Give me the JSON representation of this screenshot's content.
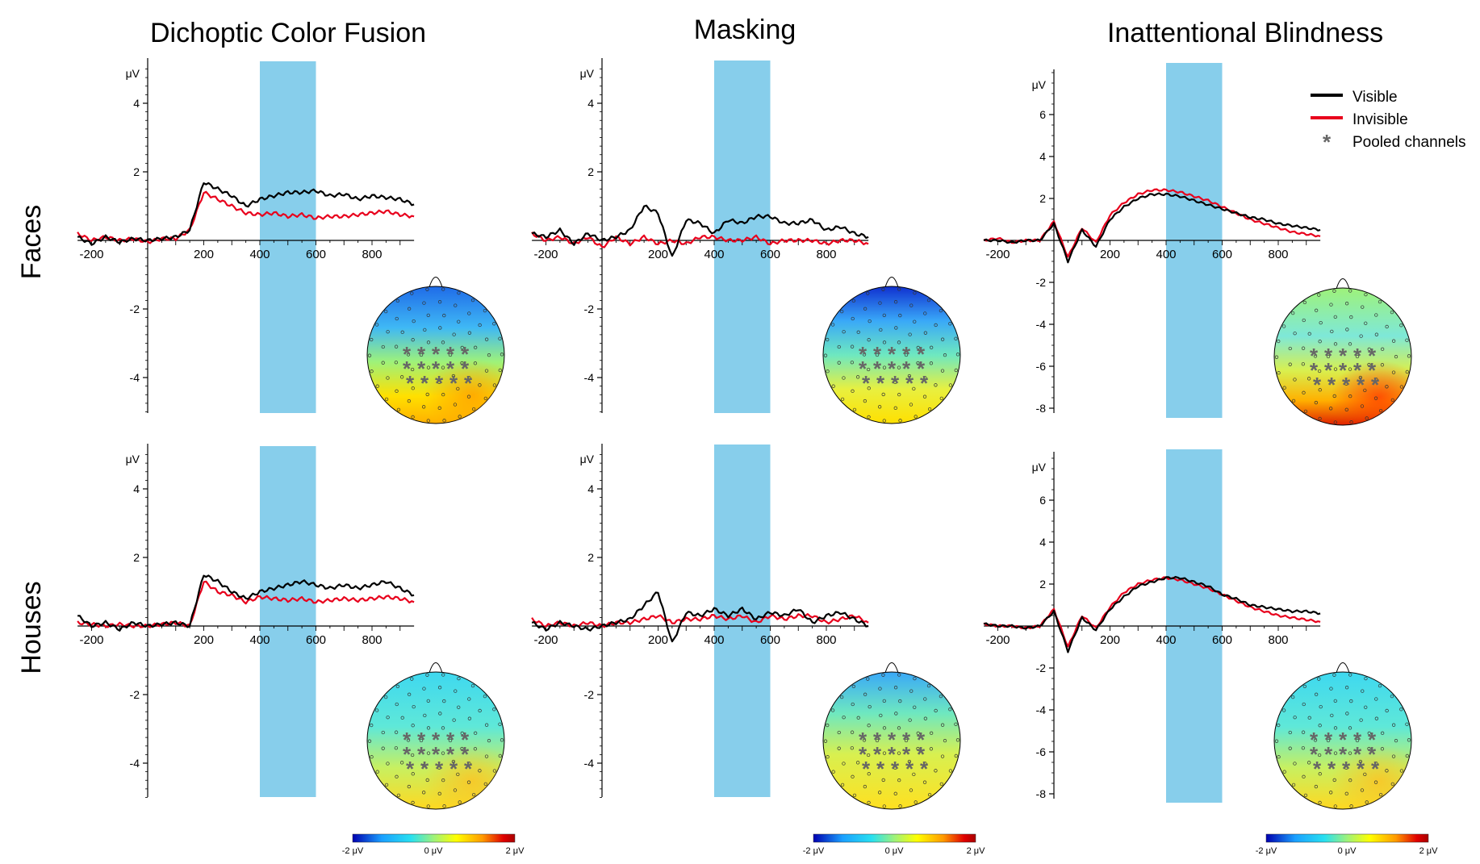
{
  "column_titles": [
    "Dichoptic Color Fusion",
    "Masking",
    "Inattentional Blindness"
  ],
  "row_labels": [
    "Faces",
    "Houses"
  ],
  "legend": {
    "items": [
      {
        "label": "Visible",
        "color": "#000000",
        "kind": "line"
      },
      {
        "label": "Invisible",
        "color": "#e8001c",
        "kind": "line"
      },
      {
        "label": "Pooled channels",
        "color": "#666666",
        "kind": "asterisk"
      }
    ],
    "placement": "top-right"
  },
  "shaded_window": {
    "from": 400,
    "to": 600,
    "color": "#87ceeb"
  },
  "colorbar": {
    "tick_labels": [
      "-2 μV",
      "0 μV",
      "2 μV"
    ],
    "range": [
      -2,
      2
    ],
    "colors": [
      "#0000b0",
      "#1aa0ff",
      "#28e0f0",
      "#9ef27a",
      "#ffff00",
      "#ff9a00",
      "#e00000",
      "#a80000"
    ]
  },
  "chart_data": [
    {
      "type": "line",
      "panel": "Dichoptic Color Fusion - Faces",
      "ylabel": "μV",
      "xlim": [
        -250,
        950
      ],
      "ylim": [
        -5,
        5
      ],
      "xticks": [
        -200,
        200,
        400,
        600,
        800
      ],
      "yticks": [
        4,
        2,
        -2,
        -4
      ],
      "x": [
        -250,
        -200,
        -150,
        -100,
        -50,
        0,
        50,
        100,
        150,
        200,
        250,
        300,
        350,
        400,
        450,
        500,
        550,
        600,
        650,
        700,
        750,
        800,
        850,
        900,
        950
      ],
      "series": [
        {
          "name": "Visible",
          "values": [
            0.1,
            -0.1,
            0.1,
            -0.05,
            0.05,
            0.0,
            0.05,
            0.1,
            0.3,
            1.7,
            1.5,
            1.3,
            1.0,
            1.2,
            1.3,
            1.4,
            1.4,
            1.45,
            1.3,
            1.35,
            1.2,
            1.3,
            1.25,
            1.2,
            1.05
          ]
        },
        {
          "name": "Invisible",
          "values": [
            0.2,
            0.0,
            0.1,
            0.0,
            0.05,
            -0.05,
            0.05,
            0.05,
            0.3,
            1.4,
            1.2,
            1.0,
            0.8,
            0.75,
            0.8,
            0.7,
            0.75,
            0.65,
            0.7,
            0.7,
            0.75,
            0.8,
            0.85,
            0.75,
            0.7
          ]
        }
      ],
      "topomap": {
        "row": "top",
        "pattern": "posterior-positive"
      }
    },
    {
      "type": "line",
      "panel": "Masking - Faces",
      "ylabel": "μV",
      "xlim": [
        -250,
        950
      ],
      "ylim": [
        -5,
        5
      ],
      "xticks": [
        -200,
        200,
        400,
        600,
        800
      ],
      "yticks": [
        4,
        2,
        -2,
        -4
      ],
      "x": [
        -250,
        -200,
        -150,
        -100,
        -50,
        0,
        50,
        100,
        150,
        200,
        250,
        300,
        350,
        400,
        450,
        500,
        550,
        600,
        650,
        700,
        750,
        800,
        850,
        900,
        950
      ],
      "series": [
        {
          "name": "Visible",
          "values": [
            0.2,
            0.1,
            0.3,
            -0.1,
            0.2,
            0.0,
            0.1,
            0.3,
            1.0,
            0.8,
            -0.5,
            0.6,
            0.5,
            0.2,
            0.6,
            0.5,
            0.7,
            0.7,
            0.5,
            0.5,
            0.6,
            0.3,
            0.4,
            0.2,
            0.1
          ]
        },
        {
          "name": "Invisible",
          "values": [
            0.2,
            0.0,
            0.1,
            -0.1,
            0.1,
            -0.2,
            0.1,
            -0.1,
            0.1,
            -0.1,
            0.0,
            -0.1,
            0.1,
            0.1,
            0.0,
            0.0,
            0.1,
            -0.1,
            0.0,
            0.0,
            0.0,
            -0.1,
            0.0,
            0.0,
            -0.1
          ]
        }
      ],
      "topomap": {
        "row": "top",
        "pattern": "frontal-negative"
      }
    },
    {
      "type": "line",
      "panel": "Inattentional Blindness - Faces",
      "ylabel": "μV",
      "xlim": [
        -250,
        950
      ],
      "ylim": [
        -8,
        8
      ],
      "xticks": [
        -200,
        200,
        400,
        600,
        800
      ],
      "yticks": [
        6,
        4,
        2,
        -2,
        -4,
        -6,
        -8
      ],
      "x": [
        -250,
        -200,
        -150,
        -100,
        -50,
        0,
        50,
        100,
        150,
        200,
        250,
        300,
        350,
        400,
        450,
        500,
        550,
        600,
        650,
        700,
        750,
        800,
        850,
        900,
        950
      ],
      "series": [
        {
          "name": "Visible",
          "values": [
            0.0,
            0.0,
            -0.1,
            0.0,
            0.0,
            0.8,
            -1.0,
            0.5,
            -0.3,
            1.0,
            1.6,
            2.0,
            2.2,
            2.2,
            2.1,
            1.9,
            1.7,
            1.5,
            1.3,
            1.1,
            1.0,
            0.8,
            0.7,
            0.6,
            0.5
          ]
        },
        {
          "name": "Invisible",
          "values": [
            0.0,
            0.1,
            -0.1,
            0.0,
            0.0,
            0.9,
            -0.8,
            0.6,
            -0.1,
            1.2,
            1.8,
            2.2,
            2.4,
            2.4,
            2.3,
            2.1,
            1.9,
            1.6,
            1.3,
            1.0,
            0.8,
            0.6,
            0.4,
            0.3,
            0.2
          ]
        }
      ],
      "topomap": {
        "row": "top",
        "pattern": "posterior-strong"
      }
    },
    {
      "type": "line",
      "panel": "Dichoptic Color Fusion - Houses",
      "ylabel": "μV",
      "xlim": [
        -250,
        950
      ],
      "ylim": [
        -5,
        5
      ],
      "xticks": [
        -200,
        200,
        400,
        600,
        800
      ],
      "yticks": [
        4,
        2,
        -2,
        -4
      ],
      "x": [
        -250,
        -200,
        -150,
        -100,
        -50,
        0,
        50,
        100,
        150,
        200,
        250,
        300,
        350,
        400,
        450,
        500,
        550,
        600,
        650,
        700,
        750,
        800,
        850,
        900,
        950
      ],
      "series": [
        {
          "name": "Visible",
          "values": [
            0.3,
            0.0,
            0.1,
            -0.1,
            0.1,
            0.0,
            0.05,
            0.1,
            0.0,
            1.5,
            1.3,
            1.0,
            0.8,
            1.0,
            1.1,
            1.2,
            1.3,
            1.2,
            1.1,
            1.2,
            1.1,
            1.2,
            1.3,
            1.1,
            0.9
          ]
        },
        {
          "name": "Invisible",
          "values": [
            0.1,
            0.05,
            0.0,
            0.05,
            0.0,
            0.0,
            0.05,
            0.1,
            0.0,
            1.3,
            1.0,
            0.9,
            0.7,
            0.85,
            0.8,
            0.75,
            0.8,
            0.7,
            0.75,
            0.8,
            0.75,
            0.8,
            0.85,
            0.8,
            0.7
          ]
        }
      ],
      "topomap": {
        "row": "bottom",
        "pattern": "posterior-mild"
      }
    },
    {
      "type": "line",
      "panel": "Masking - Houses",
      "ylabel": "μV",
      "xlim": [
        -250,
        950
      ],
      "ylim": [
        -5,
        5
      ],
      "xticks": [
        -200,
        200,
        400,
        600,
        800
      ],
      "yticks": [
        4,
        2,
        -2,
        -4
      ],
      "x": [
        -250,
        -200,
        -150,
        -100,
        -50,
        0,
        50,
        100,
        150,
        200,
        250,
        300,
        350,
        400,
        450,
        500,
        550,
        600,
        650,
        700,
        750,
        800,
        850,
        900,
        950
      ],
      "series": [
        {
          "name": "Visible",
          "values": [
            0.1,
            -0.1,
            0.1,
            0.0,
            -0.1,
            0.0,
            0.1,
            0.2,
            0.6,
            1.0,
            -0.5,
            0.4,
            0.3,
            0.5,
            0.3,
            0.5,
            0.2,
            0.4,
            0.3,
            0.5,
            0.1,
            0.3,
            0.4,
            0.2,
            0.0
          ]
        },
        {
          "name": "Invisible",
          "values": [
            0.2,
            0.0,
            0.1,
            0.0,
            0.1,
            0.0,
            0.1,
            0.1,
            0.2,
            0.3,
            0.1,
            0.2,
            0.2,
            0.3,
            0.2,
            0.3,
            0.1,
            0.3,
            0.2,
            0.3,
            0.3,
            0.1,
            0.2,
            0.3,
            0.1
          ]
        }
      ],
      "topomap": {
        "row": "bottom",
        "pattern": "frontal-negative-mild"
      }
    },
    {
      "type": "line",
      "panel": "Inattentional Blindness - Houses",
      "ylabel": "μV",
      "xlim": [
        -250,
        950
      ],
      "ylim": [
        -8,
        8
      ],
      "xticks": [
        -200,
        200,
        400,
        600,
        800
      ],
      "yticks": [
        6,
        4,
        2,
        -2,
        -4,
        -6,
        -8
      ],
      "x": [
        -250,
        -200,
        -150,
        -100,
        -50,
        0,
        50,
        100,
        150,
        200,
        250,
        300,
        350,
        400,
        450,
        500,
        550,
        600,
        650,
        700,
        750,
        800,
        850,
        900,
        950
      ],
      "series": [
        {
          "name": "Visible",
          "values": [
            0.1,
            0.0,
            0.0,
            -0.1,
            0.0,
            0.7,
            -1.2,
            0.4,
            -0.2,
            0.8,
            1.4,
            1.9,
            2.1,
            2.3,
            2.3,
            2.1,
            1.9,
            1.5,
            1.3,
            1.0,
            0.9,
            0.8,
            0.7,
            0.7,
            0.6
          ]
        },
        {
          "name": "Invisible",
          "values": [
            0.1,
            0.0,
            0.0,
            -0.1,
            0.0,
            0.8,
            -1.0,
            0.5,
            -0.1,
            0.9,
            1.6,
            2.0,
            2.2,
            2.3,
            2.2,
            2.0,
            1.8,
            1.5,
            1.2,
            0.9,
            0.7,
            0.5,
            0.4,
            0.3,
            0.2
          ]
        }
      ],
      "topomap": {
        "row": "bottom",
        "pattern": "posterior-mild"
      }
    }
  ]
}
